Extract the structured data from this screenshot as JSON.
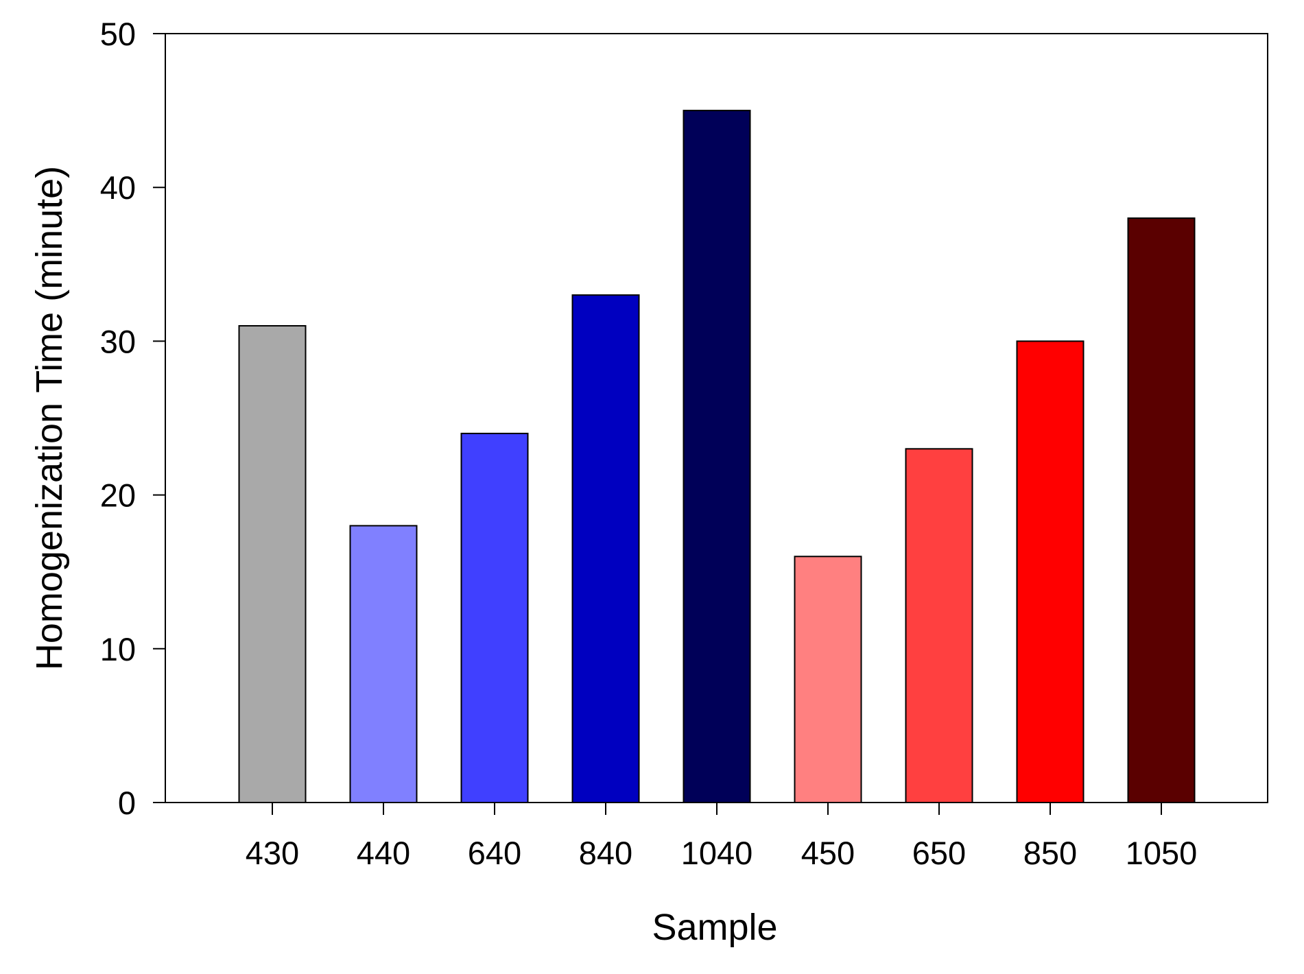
{
  "chart_data": {
    "type": "bar",
    "title": "",
    "xlabel": "Sample",
    "ylabel": "Homogenization Time (minute)",
    "categories": [
      "430",
      "440",
      "640",
      "840",
      "1040",
      "450",
      "650",
      "850",
      "1050"
    ],
    "values": [
      31,
      18,
      24,
      33,
      45,
      16,
      23,
      30,
      38
    ],
    "colors": [
      "#a9a9a9",
      "#8080ff",
      "#4040ff",
      "#0000c0",
      "#000058",
      "#ff8080",
      "#ff4040",
      "#ff0000",
      "#5a0000"
    ],
    "ylim": [
      0,
      50
    ],
    "yticks": [
      "0",
      "10",
      "20",
      "30",
      "40",
      "50"
    ],
    "grid": false,
    "legend": "none"
  }
}
